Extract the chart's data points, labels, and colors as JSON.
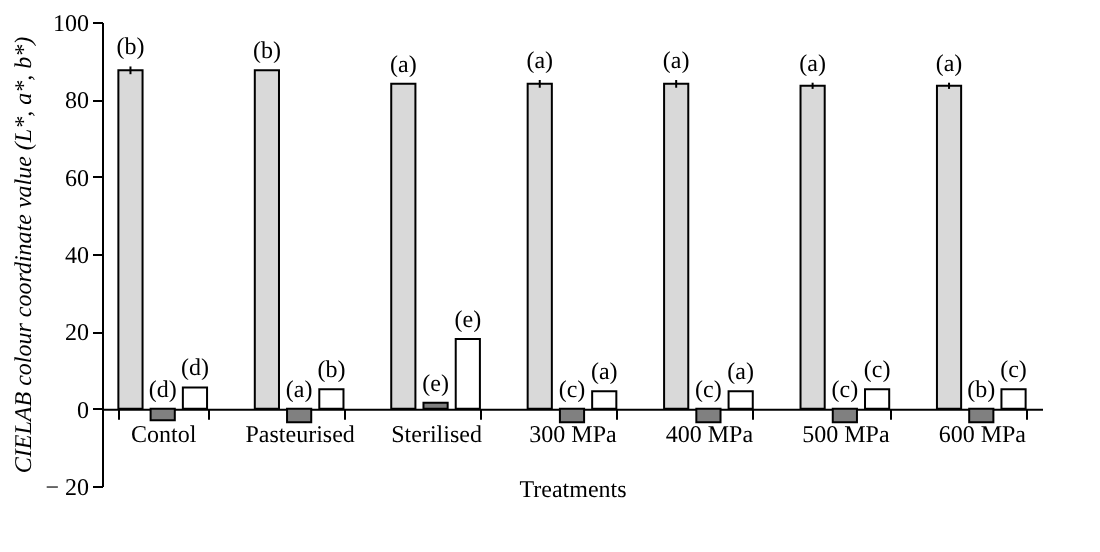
{
  "chart_data": {
    "type": "bar",
    "xlabel": "Treatments",
    "ylabel": "CIELAB colour coordinate value  (L*, a*, b*)",
    "categories": [
      "Contol",
      "Pasteurised",
      "Sterilised",
      "300 MPa",
      "400 MPa",
      "500 MPa",
      "600 MPa"
    ],
    "series": [
      {
        "color": "#d9d9d9",
        "values": [
          87.5,
          87.5,
          84,
          84,
          84,
          83.5,
          83.5
        ],
        "errors": [
          1,
          null,
          null,
          1,
          1,
          0.8,
          0.8
        ],
        "value_labels": [
          "(b)",
          "(b)",
          "(a)",
          "(a)",
          "(a)",
          "(a)",
          "(a)"
        ]
      },
      {
        "color": "#808080",
        "values": [
          -3,
          -3.5,
          1.5,
          -3.5,
          -3.5,
          -3.5,
          -3.5
        ],
        "value_labels": [
          "(d)",
          "(a)",
          "(e)",
          "(c)",
          "(c)",
          "(c)",
          "(b)"
        ]
      },
      {
        "color": "#ffffff",
        "values": [
          5.5,
          5,
          18,
          4.5,
          4.5,
          5,
          5
        ],
        "value_labels": [
          "(d)",
          "(b)",
          "(e)",
          "(a)",
          "(a)",
          "(c)",
          "(c)"
        ]
      }
    ],
    "ylim": [
      -20,
      100
    ],
    "yticks": [
      -20,
      0,
      20,
      40,
      60,
      80,
      100
    ],
    "grid": false,
    "legend": false
  }
}
